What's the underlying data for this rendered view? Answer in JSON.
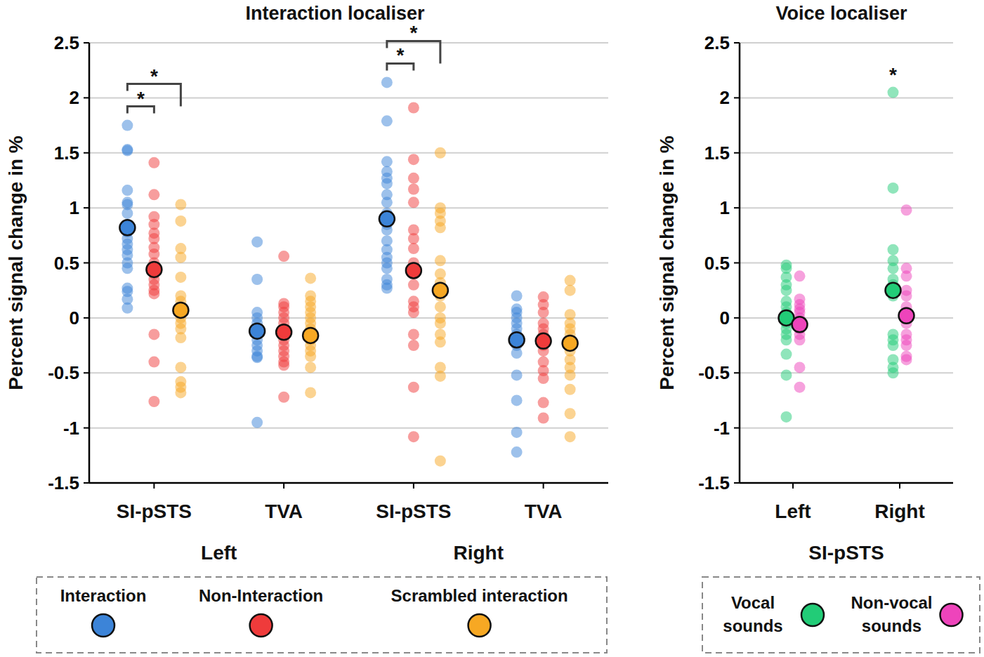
{
  "chart_data": [
    {
      "type": "scatter",
      "title": "Interaction localiser",
      "y_label": "Percent signal change in %",
      "categories": [
        "SI-pSTS",
        "TVA",
        "SI-pSTS",
        "TVA"
      ],
      "groups": [
        {
          "label": "Left",
          "categories": [
            0,
            1
          ]
        },
        {
          "label": "Right",
          "categories": [
            2,
            3
          ]
        }
      ],
      "ylim": [
        -1.5,
        2.5
      ],
      "yticks": [
        -1.5,
        -1,
        -0.5,
        0,
        0.5,
        1,
        1.5,
        2,
        2.5
      ],
      "grid": true,
      "legend": "bottom",
      "series": [
        {
          "name": "Interaction",
          "color": "#3c84d8",
          "values": [
            0.82,
            -0.12,
            0.9,
            -0.2
          ],
          "points": [
            [
              1.75,
              1.53,
              1.52,
              1.16,
              1.05,
              1.03,
              0.95,
              0.85,
              0.78,
              0.72,
              0.67,
              0.62,
              0.57,
              0.5,
              0.45,
              0.27,
              0.24,
              0.17,
              0.09
            ],
            [
              0.69,
              0.35,
              0.05,
              0.0,
              -0.05,
              -0.1,
              -0.15,
              -0.2,
              -0.25,
              -0.3,
              -0.35,
              -0.36,
              -0.95
            ],
            [
              2.14,
              1.79,
              1.42,
              1.33,
              1.27,
              1.22,
              1.12,
              1.05,
              0.95,
              0.85,
              0.8,
              0.7,
              0.62,
              0.55,
              0.5,
              0.45,
              0.35,
              0.3,
              0.27
            ],
            [
              0.2,
              0.08,
              0.05,
              0.0,
              -0.05,
              -0.1,
              -0.15,
              -0.2,
              -0.25,
              -0.32,
              -0.52,
              -0.75,
              -1.04,
              -1.22
            ]
          ]
        },
        {
          "name": "Non-Interaction",
          "color": "#ef3b3b",
          "values": [
            0.44,
            -0.13,
            0.43,
            -0.21
          ],
          "points": [
            [
              1.41,
              1.12,
              0.92,
              0.85,
              0.77,
              0.72,
              0.64,
              0.58,
              0.5,
              0.45,
              0.4,
              0.35,
              0.3,
              0.25,
              0.22,
              -0.15,
              -0.4,
              -0.76
            ],
            [
              0.56,
              0.13,
              0.1,
              0.05,
              0.0,
              -0.05,
              -0.1,
              -0.15,
              -0.2,
              -0.25,
              -0.3,
              -0.35,
              -0.4,
              -0.43,
              -0.72
            ],
            [
              1.91,
              1.44,
              1.27,
              1.17,
              1.05,
              0.8,
              0.72,
              0.63,
              0.5,
              0.4,
              0.3,
              0.15,
              0.1,
              0.05,
              -0.15,
              -0.25,
              -0.63,
              -1.08
            ],
            [
              0.19,
              0.12,
              0.05,
              -0.05,
              -0.1,
              -0.15,
              -0.2,
              -0.25,
              -0.3,
              -0.4,
              -0.48,
              -0.55,
              -0.77,
              -0.91
            ]
          ]
        },
        {
          "name": "Scrambled interaction",
          "color": "#f7a823",
          "values": [
            0.07,
            -0.16,
            0.25,
            -0.23
          ],
          "points": [
            [
              1.03,
              0.88,
              0.63,
              0.55,
              0.37,
              0.2,
              0.15,
              0.1,
              0.05,
              0.0,
              -0.05,
              -0.1,
              -0.18,
              -0.45,
              -0.58,
              -0.63,
              -0.68
            ],
            [
              0.36,
              0.2,
              0.15,
              0.1,
              0.05,
              0.0,
              -0.05,
              -0.1,
              -0.15,
              -0.2,
              -0.25,
              -0.3,
              -0.35,
              -0.45,
              -0.68
            ],
            [
              1.5,
              1.0,
              0.95,
              0.88,
              0.82,
              0.52,
              0.4,
              0.32,
              0.2,
              0.1,
              0.0,
              -0.05,
              -0.15,
              -0.22,
              -0.45,
              -0.53,
              -1.3
            ],
            [
              0.34,
              0.25,
              0.03,
              -0.05,
              -0.1,
              -0.15,
              -0.2,
              -0.3,
              -0.38,
              -0.45,
              -0.52,
              -0.65,
              -0.87,
              -1.08
            ]
          ]
        }
      ],
      "annotations": [
        {
          "category": 0,
          "series": [
            0,
            1
          ],
          "text": "*"
        },
        {
          "category": 0,
          "series": [
            0,
            2
          ],
          "text": "*"
        },
        {
          "category": 2,
          "series": [
            0,
            1
          ],
          "text": "*"
        },
        {
          "category": 2,
          "series": [
            0,
            2
          ],
          "text": "*"
        }
      ]
    },
    {
      "type": "scatter",
      "title": "Voice localiser",
      "y_label": "Percent signal change in %",
      "x_label": "SI-pSTS",
      "categories": [
        "Left",
        "Right"
      ],
      "ylim": [
        -1.5,
        2.5
      ],
      "yticks": [
        -1.5,
        -1,
        -0.5,
        0,
        0.5,
        1,
        1.5,
        2,
        2.5
      ],
      "grid": true,
      "legend": "bottom",
      "series": [
        {
          "name": "Vocal sounds",
          "color": "#22cc77",
          "values": [
            0.0,
            0.25
          ],
          "points": [
            [
              0.48,
              0.45,
              0.37,
              0.3,
              0.25,
              0.15,
              0.1,
              0.05,
              0.0,
              -0.05,
              -0.1,
              -0.15,
              -0.2,
              -0.33,
              -0.52,
              -0.9
            ],
            [
              2.05,
              1.18,
              0.62,
              0.52,
              0.45,
              0.35,
              0.3,
              0.25,
              0.2,
              -0.15,
              -0.2,
              -0.25,
              -0.38,
              -0.45,
              -0.5
            ]
          ]
        },
        {
          "name": "Non-vocal sounds",
          "color": "#ee44bb",
          "values": [
            -0.06,
            0.02
          ],
          "points": [
            [
              0.38,
              0.17,
              0.12,
              0.08,
              0.05,
              0.0,
              -0.05,
              -0.1,
              -0.15,
              -0.2,
              -0.45,
              -0.63
            ],
            [
              0.98,
              0.45,
              0.38,
              0.25,
              0.2,
              0.1,
              0.05,
              0.0,
              -0.05,
              -0.15,
              -0.2,
              -0.25,
              -0.35,
              -0.38
            ]
          ]
        }
      ],
      "annotations": [
        {
          "category": 1,
          "series": [
            0
          ],
          "text": "*"
        }
      ]
    }
  ]
}
